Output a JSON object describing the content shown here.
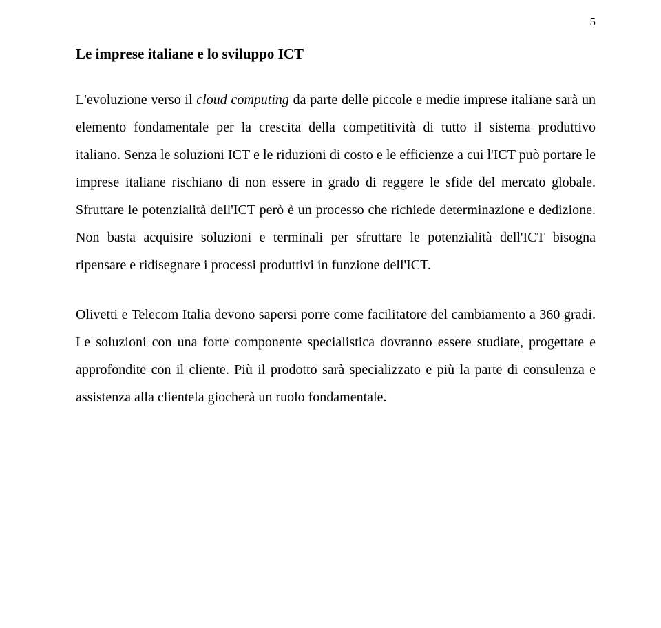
{
  "page": {
    "number": "5"
  },
  "section": {
    "title": "Le imprese italiane e lo sviluppo ICT"
  },
  "paragraphs": {
    "p1_a": "L'evoluzione verso il ",
    "p1_ital": "cloud computing",
    "p1_b": " da parte delle piccole e medie imprese italiane sarà un elemento fondamentale per la crescita della competitività di tutto il sistema produttivo italiano. Senza le soluzioni ICT e le riduzioni di costo e le efficienze a cui l'ICT può portare le imprese italiane rischiano di non essere in grado di reggere le sfide del mercato globale. Sfruttare le potenzialità dell'ICT però è un processo che richiede determinazione e dedizione. Non basta acquisire soluzioni e terminali per sfruttare le potenzialità dell'ICT bisogna ripensare e ridisegnare i processi produttivi in funzione dell'ICT.",
    "p2": "Olivetti e Telecom Italia devono sapersi porre come facilitatore del cambiamento a 360 gradi. Le soluzioni con una forte componente specialistica dovranno essere studiate, progettate e approfondite con il cliente. Più il prodotto sarà specializzato e più la parte di consulenza e assistenza alla clientela giocherà un ruolo fondamentale."
  },
  "style": {
    "background_color": "#ffffff",
    "text_color": "#000000",
    "font_family": "Times New Roman",
    "title_fontsize": 21,
    "body_fontsize": 20,
    "line_height": 2.0
  }
}
